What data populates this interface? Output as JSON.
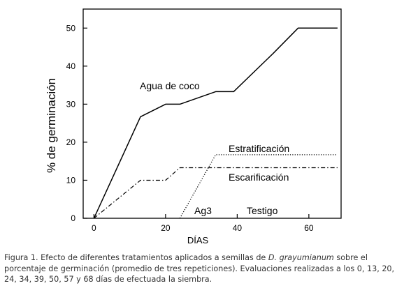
{
  "chart_data": {
    "type": "line",
    "xlabel": "DÍAS",
    "ylabel": "% de germinación",
    "xlim": [
      -3,
      69
    ],
    "ylim": [
      0,
      55
    ],
    "xticks": [
      0,
      20,
      40,
      60
    ],
    "yticks": [
      0,
      10,
      20,
      30,
      40,
      50
    ],
    "grid": false,
    "series": [
      {
        "name": "Agua de coco",
        "style": "solid",
        "x": [
          0,
          13,
          20,
          24,
          34,
          39,
          50,
          57,
          68
        ],
        "y": [
          0,
          26.7,
          30,
          30,
          33.3,
          33.3,
          43.3,
          50,
          50
        ]
      },
      {
        "name": "Estratificación",
        "style": "dotted",
        "x": [
          0,
          24,
          34,
          68
        ],
        "y": [
          0,
          0,
          16.7,
          16.7
        ]
      },
      {
        "name": "Escarificación",
        "style": "dashdot",
        "x": [
          0,
          13,
          20,
          24,
          68
        ],
        "y": [
          0,
          10,
          10,
          13.3,
          13.3
        ]
      },
      {
        "name": "Ag3",
        "style": "none",
        "x": [
          0,
          68
        ],
        "y": [
          0,
          0
        ]
      },
      {
        "name": "Testigo",
        "style": "none",
        "x": [
          0,
          68
        ],
        "y": [
          0,
          0
        ]
      }
    ]
  },
  "caption": {
    "prefix": "Figura 1. Efecto de diferentes tratamientos aplicados a semillas de ",
    "species": "D. grayumianum",
    "suffix": " sobre el porcentaje de germinación (promedio de tres repeticiones). Evaluaciones realizadas a los 0, 13, 20, 24, 34, 39, 50, 57 y 68 días de efectuada la siembra."
  }
}
